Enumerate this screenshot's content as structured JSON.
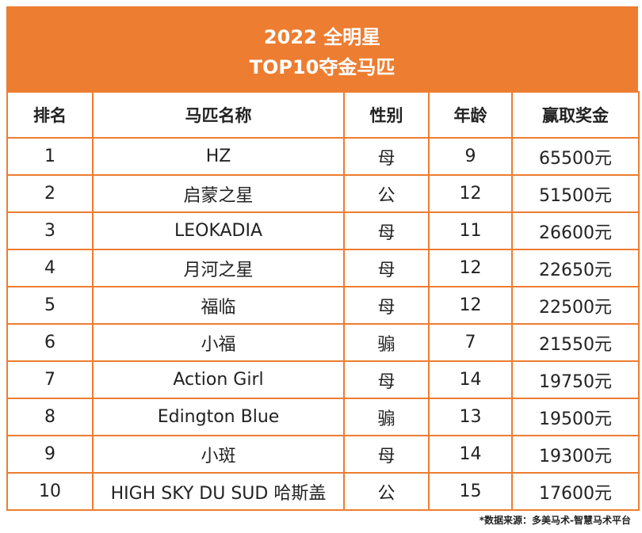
{
  "header": {
    "title": "2022 全明星",
    "subtitle": "TOP10夺金马匹"
  },
  "table": {
    "columns": [
      "排名",
      "马匹名称",
      "性别",
      "年龄",
      "赢取奖金"
    ],
    "rows": [
      [
        "1",
        "HZ",
        "母",
        "9",
        "65500元"
      ],
      [
        "2",
        "启蒙之星",
        "公",
        "12",
        "51500元"
      ],
      [
        "3",
        "LEOKADIA",
        "母",
        "11",
        "26600元"
      ],
      [
        "4",
        "月河之星",
        "母",
        "12",
        "22650元"
      ],
      [
        "5",
        "福临",
        "母",
        "12",
        "22500元"
      ],
      [
        "6",
        "小福",
        "骟",
        "7",
        "21550元"
      ],
      [
        "7",
        "Action Girl",
        "母",
        "14",
        "19750元"
      ],
      [
        "8",
        "Edington Blue",
        "骟",
        "13",
        "19500元"
      ],
      [
        "9",
        "小斑",
        "母",
        "14",
        "19300元"
      ],
      [
        "10",
        "HIGH SKY DU SUD 哈斯盖",
        "公",
        "15",
        "17600元"
      ]
    ]
  },
  "footer": {
    "source": "*数据来源：多美马术-智慧马术平台"
  }
}
